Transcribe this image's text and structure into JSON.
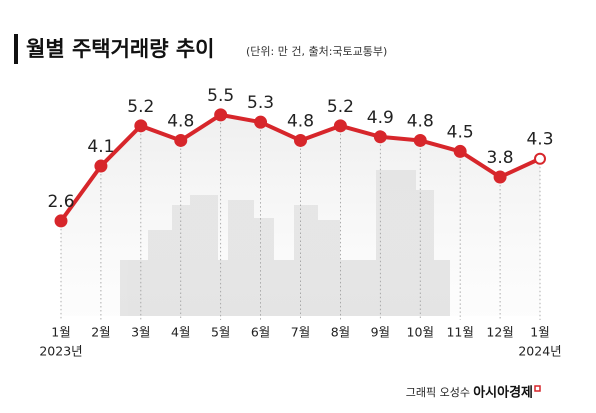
{
  "chart_data": {
    "type": "line",
    "title": "월별 주택거래량 추이",
    "subtitle": "(단위: 만 건, 출처:국토교통부)",
    "categories": [
      "1월",
      "2월",
      "3월",
      "4월",
      "5월",
      "6월",
      "7월",
      "8월",
      "9월",
      "10월",
      "11월",
      "12월",
      "1월"
    ],
    "year_labels": [
      "2023년",
      "2024년"
    ],
    "series": [
      {
        "name": "월별 주택거래량",
        "color": "#d7262b",
        "values": [
          2.6,
          4.1,
          5.2,
          4.8,
          5.5,
          5.3,
          4.8,
          5.2,
          4.9,
          4.8,
          4.5,
          3.8,
          4.3
        ]
      }
    ],
    "highlight_last": true,
    "ylim": [
      0,
      7
    ],
    "credit": "그래픽 오성수",
    "brand": "아시아경제"
  }
}
